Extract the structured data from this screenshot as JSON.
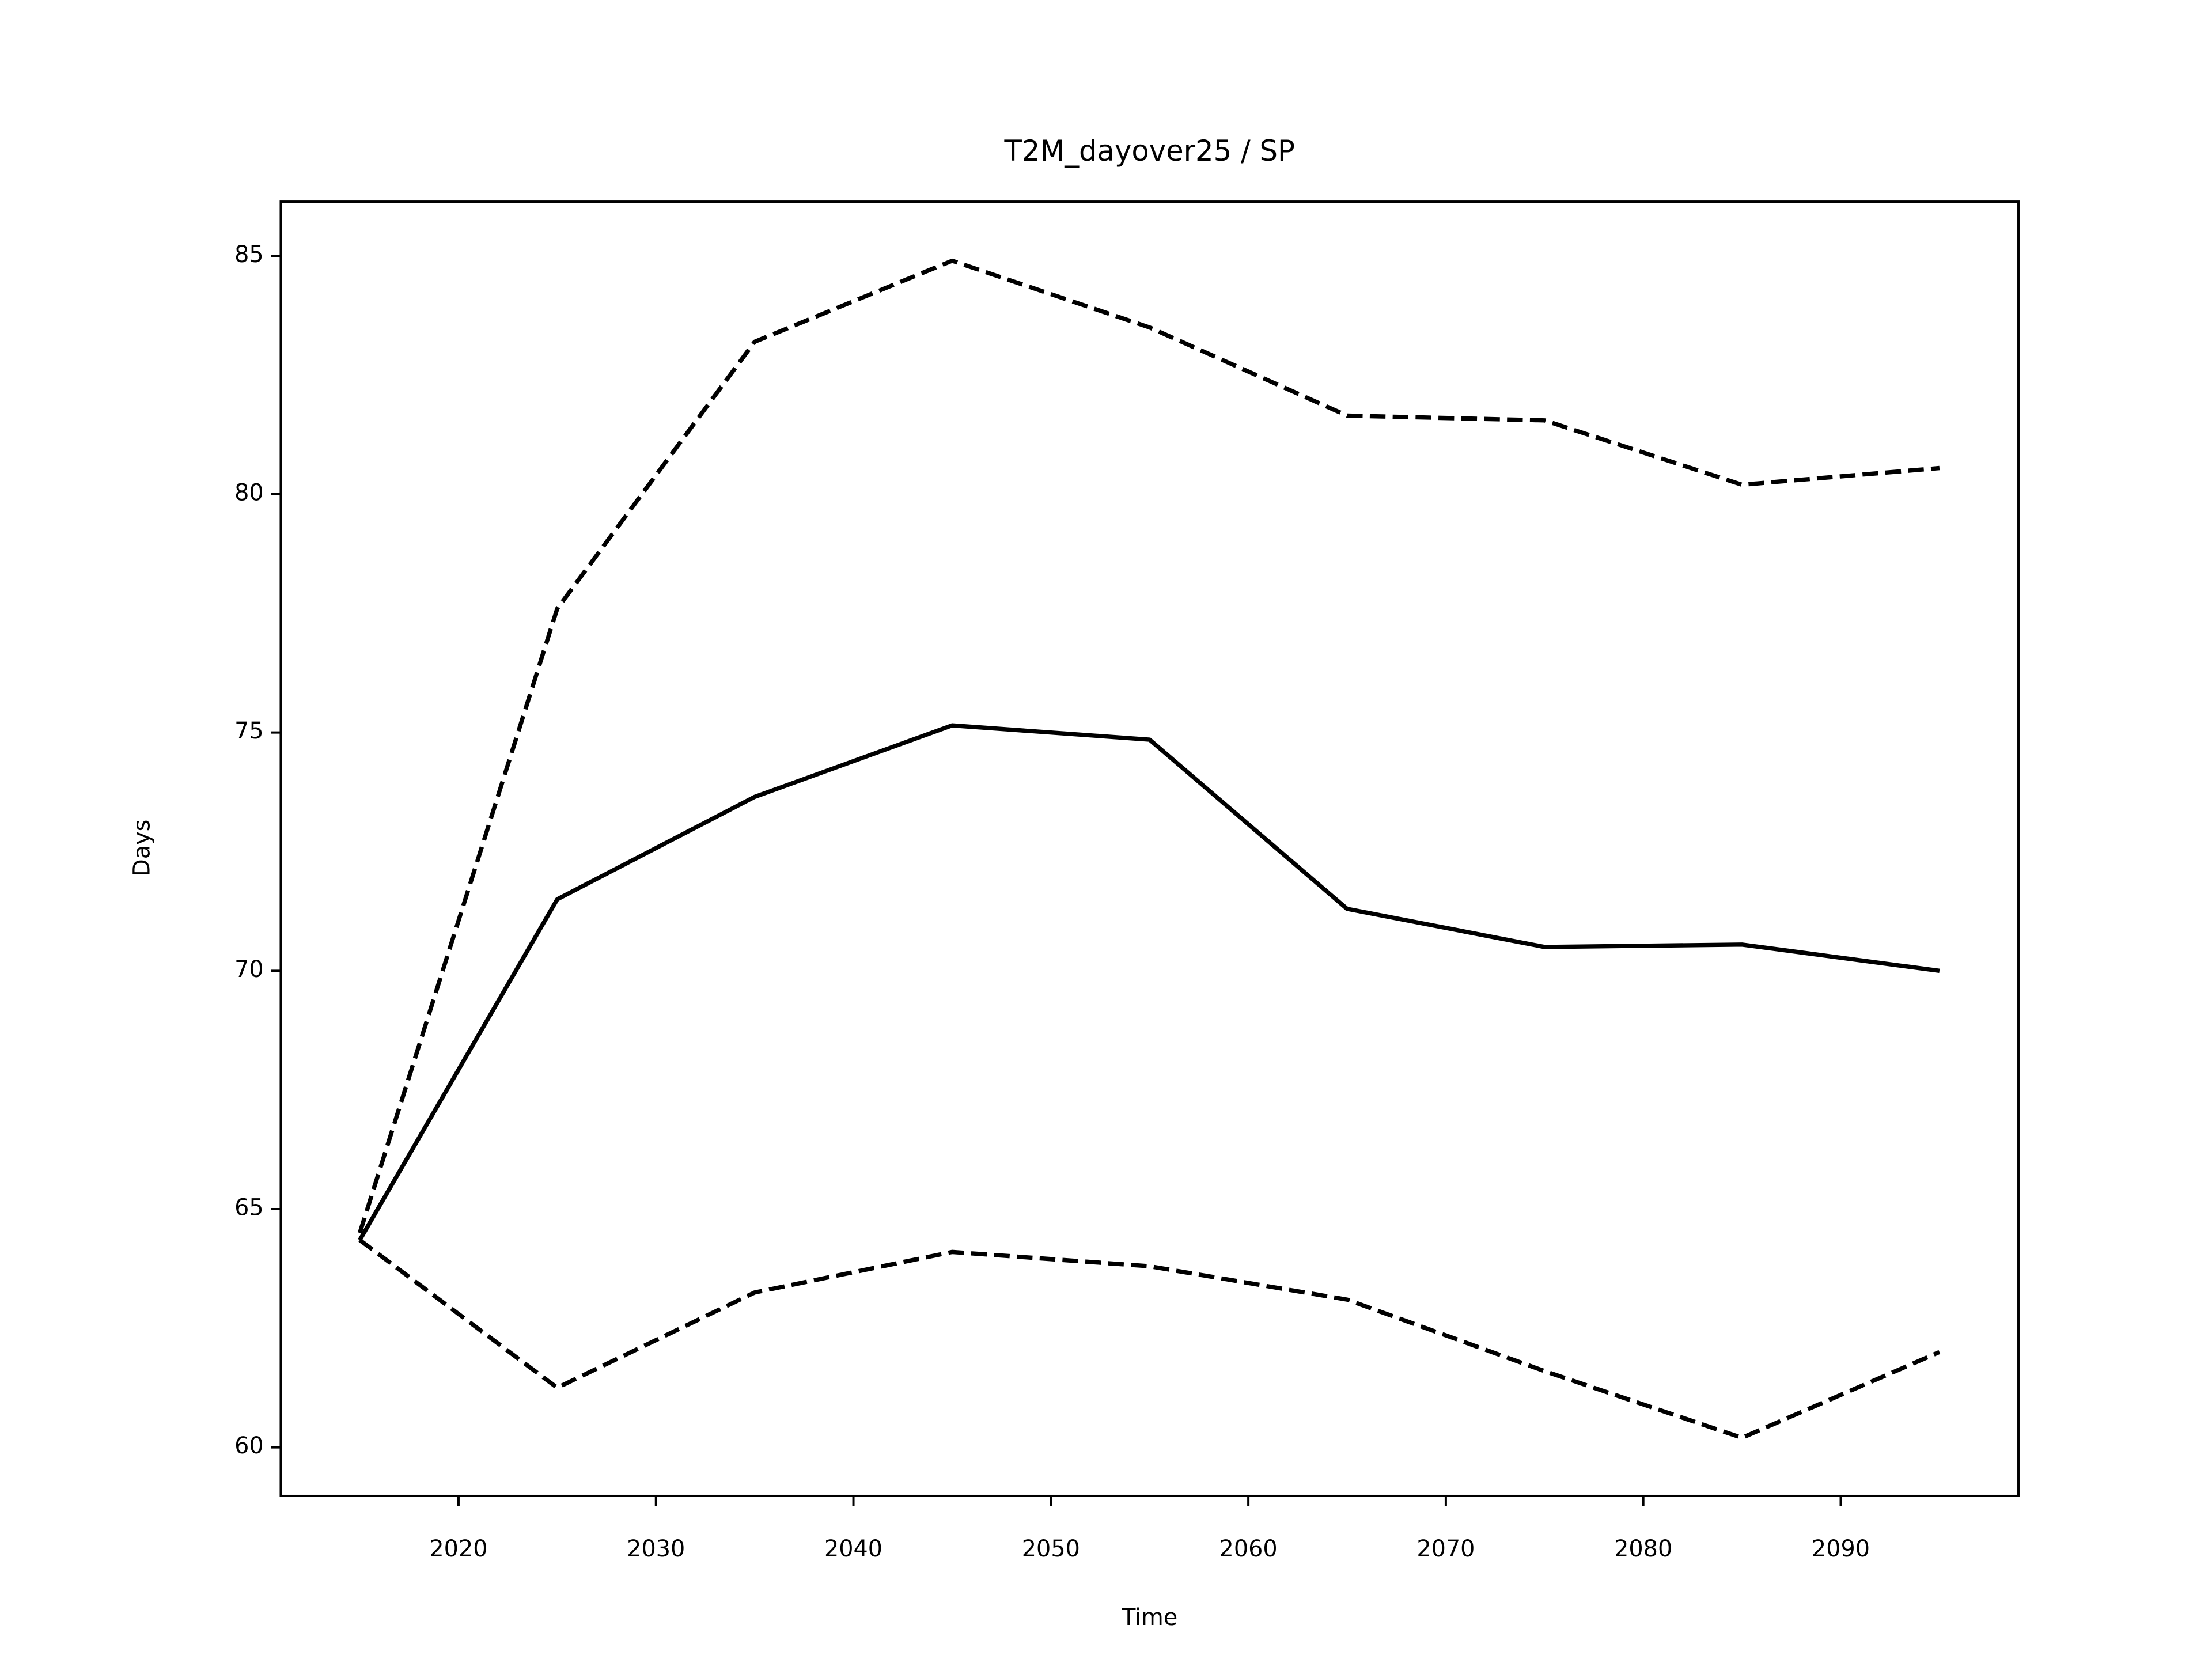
{
  "chart_data": {
    "type": "line",
    "title": "T2M_dayover25 / SP",
    "xlabel": "Time",
    "ylabel": "Days",
    "x": [
      2015,
      2025,
      2035,
      2045,
      2055,
      2065,
      2075,
      2085,
      2095
    ],
    "series": [
      {
        "color": "#000000",
        "linestyle": "solid",
        "values": [
          64.35,
          71.5,
          73.65,
          75.15,
          74.85,
          71.3,
          70.5,
          70.55,
          70.0
        ]
      },
      {
        "color": "#000000",
        "linestyle": "dashed",
        "values": [
          64.5,
          77.6,
          83.2,
          84.9,
          83.5,
          81.65,
          81.55,
          80.2,
          80.55
        ]
      },
      {
        "color": "#000000",
        "linestyle": "dashed",
        "values": [
          64.35,
          61.25,
          63.25,
          64.1,
          63.8,
          63.1,
          61.6,
          60.2,
          62.0
        ]
      }
    ],
    "xlim": [
      2011,
      2099
    ],
    "xticks": [
      2020,
      2030,
      2040,
      2050,
      2060,
      2070,
      2080,
      2090
    ],
    "ylim": [
      58.98,
      86.14
    ],
    "yticks": [
      60,
      65,
      70,
      75,
      80,
      85
    ],
    "grid": false
  }
}
